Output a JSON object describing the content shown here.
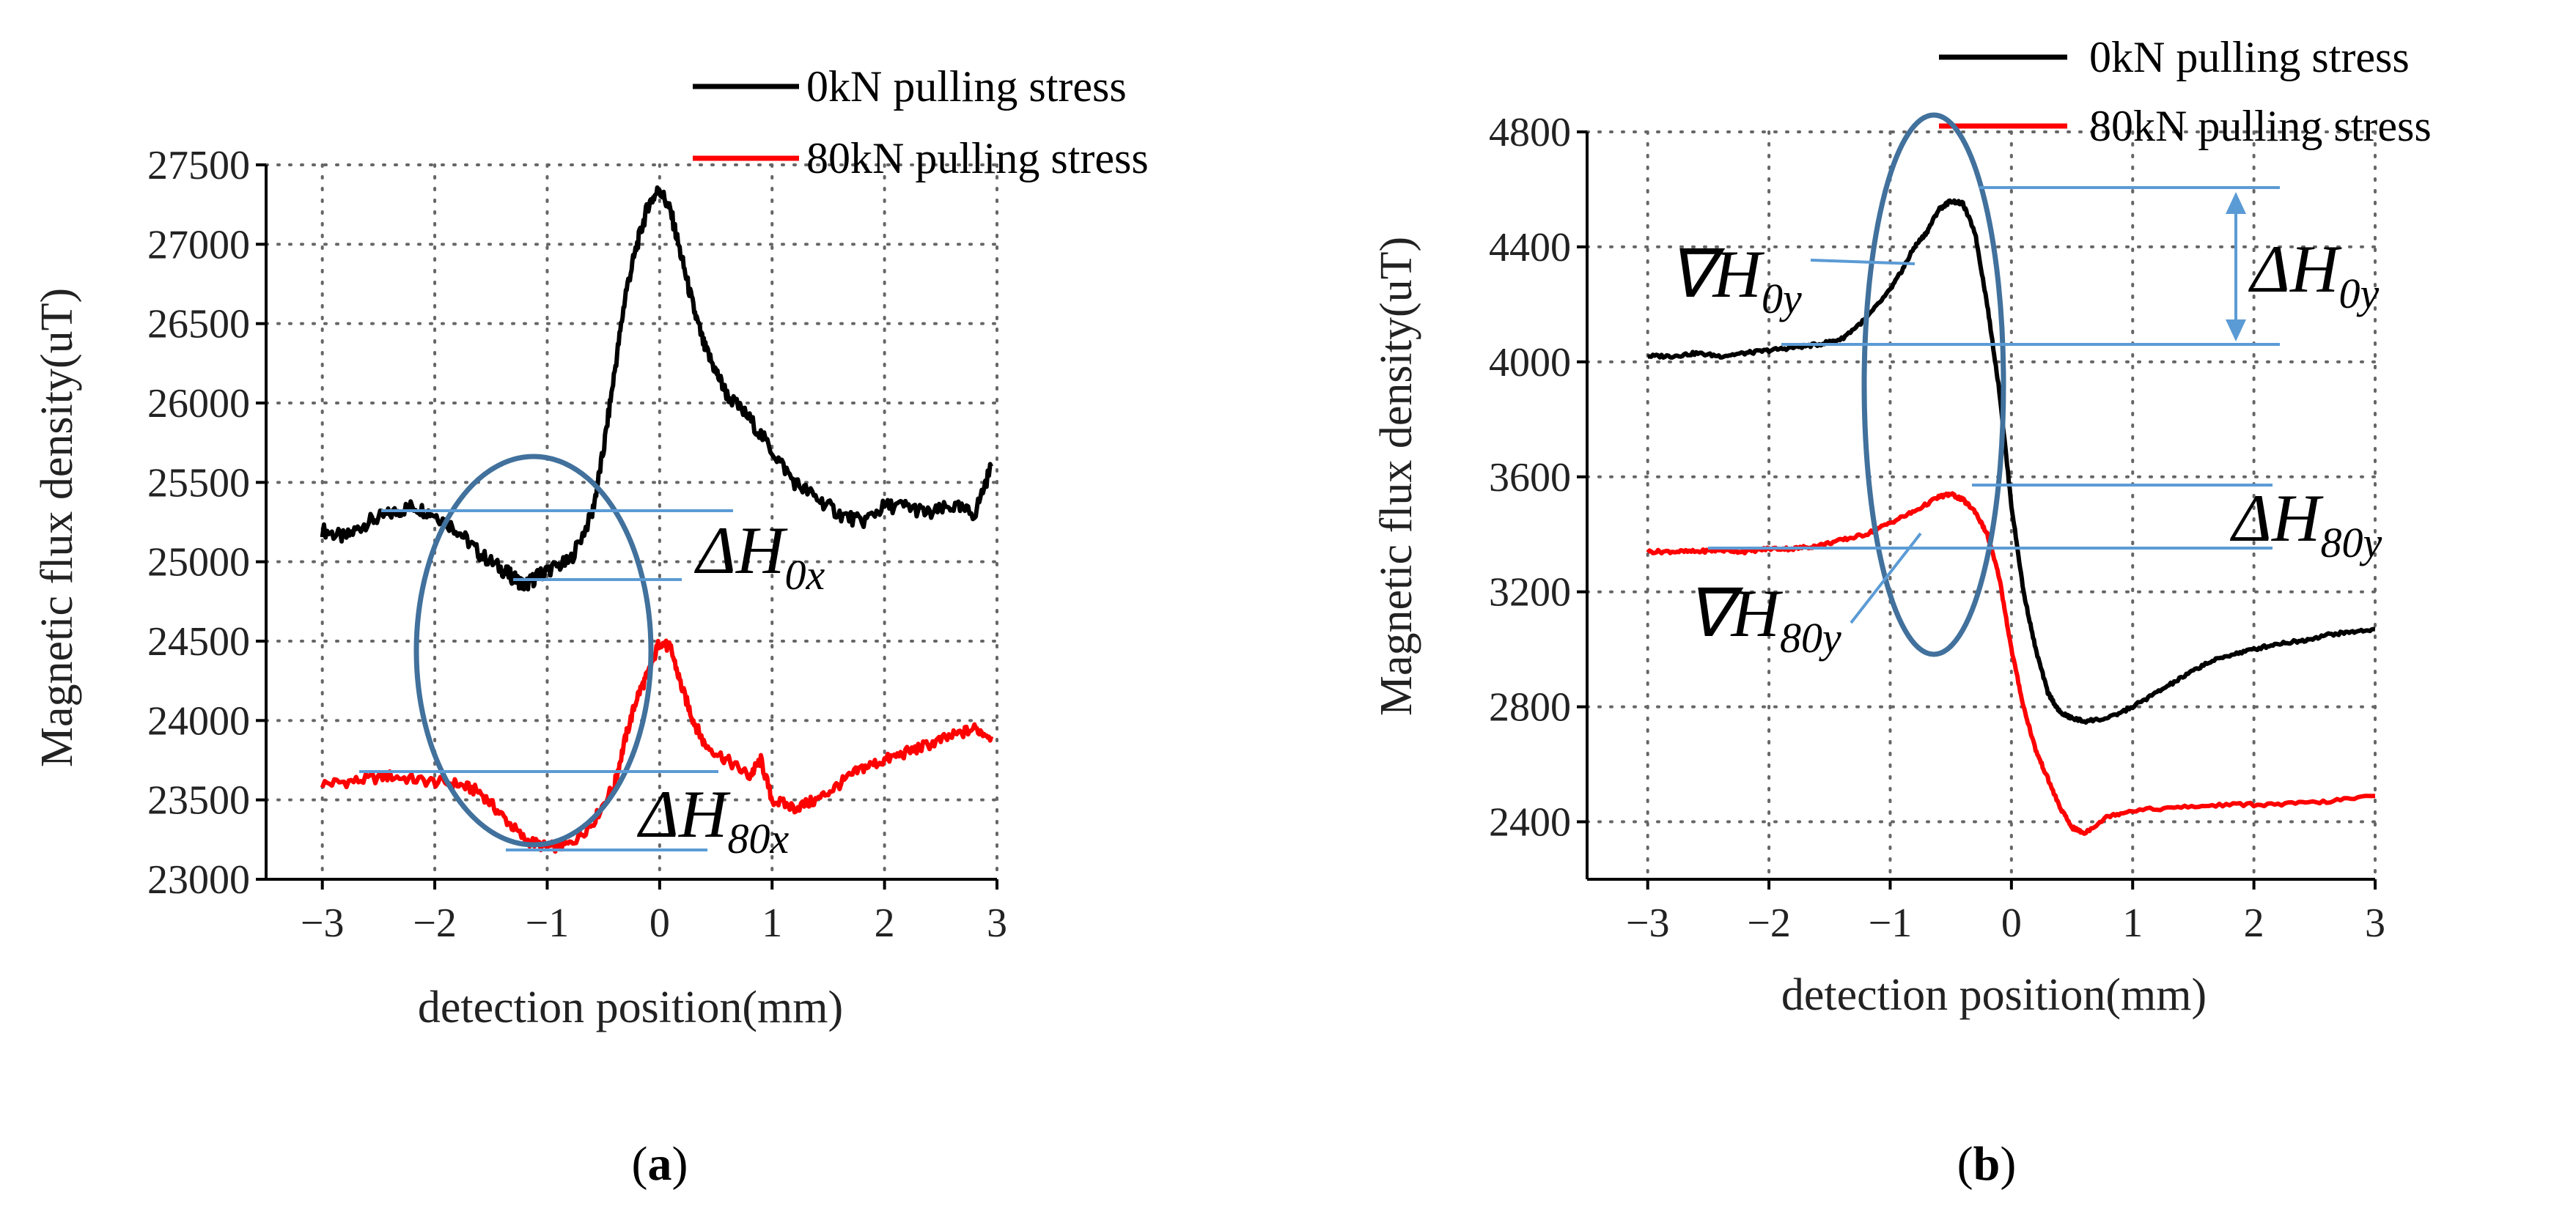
{
  "chart_data": [
    {
      "type": "line",
      "panel": "a",
      "caption_open": "(",
      "caption_letter": "a",
      "caption_close": ")",
      "title": "",
      "xlabel": "detection position(mm)",
      "ylabel": "Magnetic flux density(uT)",
      "xlim": [
        -3.5,
        3
      ],
      "ylim": [
        23000,
        27500
      ],
      "xticks": [
        -3,
        -2,
        -1,
        0,
        1,
        2,
        3
      ],
      "yticks": [
        23000,
        23500,
        24000,
        24500,
        25000,
        25500,
        26000,
        26500,
        27000,
        27500
      ],
      "xtick_labels": [
        "−3",
        "−2",
        "−1",
        "0",
        "1",
        "2",
        "3"
      ],
      "ytick_labels": [
        "23000",
        "23500",
        "24000",
        "24500",
        "25000",
        "25500",
        "26000",
        "26500",
        "27000",
        "27500"
      ],
      "series": [
        {
          "name": "0kN pulling stress",
          "color": "#000000",
          "x": [
            -3.0,
            -2.8,
            -2.6,
            -2.4,
            -2.2,
            -2.0,
            -1.8,
            -1.6,
            -1.4,
            -1.3,
            -1.2,
            -1.1,
            -1.0,
            -0.8,
            -0.6,
            -0.5,
            -0.4,
            -0.3,
            -0.2,
            -0.1,
            0.0,
            0.1,
            0.2,
            0.3,
            0.4,
            0.5,
            0.6,
            0.8,
            1.0,
            1.2,
            1.4,
            1.6,
            1.8,
            2.0,
            2.2,
            2.4,
            2.6,
            2.8,
            2.95
          ],
          "y": [
            25200,
            25150,
            25250,
            25300,
            25350,
            25300,
            25200,
            25050,
            24950,
            24900,
            24850,
            24900,
            24950,
            25000,
            25300,
            25700,
            26200,
            26700,
            27000,
            27250,
            27350,
            27200,
            26900,
            26600,
            26350,
            26200,
            26050,
            25900,
            25700,
            25500,
            25400,
            25300,
            25250,
            25350,
            25350,
            25300,
            25350,
            25300,
            25600
          ]
        },
        {
          "name": "80kN pulling stress",
          "color": "#ff0000",
          "x": [
            -3.0,
            -2.7,
            -2.4,
            -2.1,
            -1.8,
            -1.6,
            -1.4,
            -1.2,
            -1.0,
            -0.8,
            -0.6,
            -0.4,
            -0.3,
            -0.2,
            -0.1,
            0.0,
            0.1,
            0.2,
            0.3,
            0.4,
            0.6,
            0.8,
            0.9,
            1.0,
            1.2,
            1.4,
            1.6,
            1.8,
            2.0,
            2.2,
            2.4,
            2.6,
            2.8,
            2.95
          ],
          "y": [
            23600,
            23620,
            23650,
            23620,
            23600,
            23550,
            23400,
            23250,
            23200,
            23220,
            23350,
            23600,
            23900,
            24150,
            24300,
            24500,
            24450,
            24200,
            24000,
            23850,
            23750,
            23650,
            23750,
            23500,
            23450,
            23500,
            23600,
            23700,
            23750,
            23800,
            23850,
            23900,
            23950,
            23900
          ]
        }
      ],
      "annotations": [
        {
          "symbol": "ΔH",
          "subscript": "0x"
        },
        {
          "symbol": "ΔH",
          "subscript": "80x"
        }
      ],
      "legend": "top-right"
    },
    {
      "type": "line",
      "panel": "b",
      "caption_open": "(",
      "caption_letter": "b",
      "caption_close": ")",
      "title": "",
      "xlabel": "detection position(mm)",
      "ylabel": "Magnetic flux density(uT)",
      "xlim": [
        -3.5,
        3
      ],
      "ylim": [
        2200,
        4800
      ],
      "xticks": [
        -3,
        -2,
        -1,
        0,
        1,
        2,
        3
      ],
      "yticks": [
        2400,
        2800,
        3200,
        3600,
        4000,
        4400,
        4800
      ],
      "xtick_labels": [
        "−3",
        "−2",
        "−1",
        "0",
        "1",
        "2",
        "3"
      ],
      "ytick_labels": [
        "2400",
        "2800",
        "3200",
        "3600",
        "4000",
        "4400",
        "4800"
      ],
      "series": [
        {
          "name": "0kN pulling stress",
          "color": "#000000",
          "x": [
            -3.0,
            -2.8,
            -2.6,
            -2.4,
            -2.2,
            -2.0,
            -1.8,
            -1.6,
            -1.4,
            -1.2,
            -1.0,
            -0.9,
            -0.8,
            -0.7,
            -0.6,
            -0.5,
            -0.4,
            -0.3,
            -0.2,
            -0.1,
            0.0,
            0.1,
            0.2,
            0.3,
            0.4,
            0.5,
            0.6,
            0.8,
            1.0,
            1.2,
            1.4,
            1.6,
            1.8,
            2.0,
            2.2,
            2.4,
            2.6,
            2.8,
            3.0
          ],
          "y": [
            4020,
            4020,
            4030,
            4020,
            4030,
            4040,
            4050,
            4060,
            4080,
            4150,
            4250,
            4320,
            4400,
            4450,
            4530,
            4560,
            4550,
            4450,
            4200,
            3900,
            3500,
            3200,
            3000,
            2850,
            2780,
            2760,
            2750,
            2760,
            2800,
            2850,
            2900,
            2950,
            2980,
            3000,
            3020,
            3030,
            3050,
            3060,
            3070
          ]
        },
        {
          "name": "80kN pulling stress",
          "color": "#ff0000",
          "x": [
            -3.0,
            -2.8,
            -2.6,
            -2.4,
            -2.2,
            -2.0,
            -1.8,
            -1.6,
            -1.4,
            -1.2,
            -1.0,
            -0.8,
            -0.6,
            -0.5,
            -0.4,
            -0.3,
            -0.2,
            -0.1,
            0.0,
            0.1,
            0.2,
            0.3,
            0.4,
            0.5,
            0.6,
            0.8,
            1.0,
            1.4,
            1.8,
            2.2,
            2.6,
            3.0
          ],
          "y": [
            3340,
            3340,
            3340,
            3345,
            3340,
            3350,
            3350,
            3360,
            3380,
            3400,
            3440,
            3480,
            3530,
            3540,
            3520,
            3480,
            3400,
            3250,
            3000,
            2800,
            2650,
            2550,
            2450,
            2380,
            2360,
            2420,
            2440,
            2450,
            2460,
            2460,
            2470,
            2490
          ]
        }
      ],
      "annotations": [
        {
          "symbol": "∇H",
          "subscript": "0y"
        },
        {
          "symbol": "ΔH",
          "subscript": "0y"
        },
        {
          "symbol": "ΔH",
          "subscript": "80y"
        },
        {
          "symbol": "∇H",
          "subscript": "80y"
        }
      ],
      "legend": "top-right"
    }
  ]
}
